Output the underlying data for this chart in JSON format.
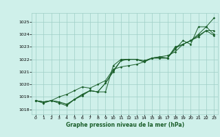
{
  "title": "Graphe pression niveau de la mer (hPa)",
  "bg_color": "#cff0ea",
  "grid_color": "#9ecec6",
  "line_color": "#1a5e2a",
  "x_ticks": [
    0,
    1,
    2,
    3,
    4,
    5,
    6,
    7,
    8,
    9,
    10,
    11,
    12,
    13,
    14,
    15,
    16,
    17,
    18,
    19,
    20,
    21,
    22,
    23
  ],
  "y_ticks": [
    1018,
    1019,
    1020,
    1021,
    1022,
    1023,
    1024,
    1025
  ],
  "ylim": [
    1017.6,
    1025.7
  ],
  "xlim": [
    -0.5,
    23.5
  ],
  "line1": [
    1018.7,
    1018.6,
    1018.7,
    1018.6,
    1018.4,
    1018.8,
    1019.2,
    1019.5,
    1019.4,
    1019.4,
    1021.5,
    1022.0,
    1022.0,
    1022.0,
    1021.8,
    1022.1,
    1022.1,
    1022.1,
    1022.8,
    1023.5,
    1023.2,
    1024.6,
    1024.6,
    1025.3
  ],
  "line2": [
    1018.7,
    1018.6,
    1018.7,
    1018.6,
    1018.4,
    1018.8,
    1019.2,
    1019.5,
    1019.4,
    1020.1,
    1021.0,
    1021.9,
    1022.0,
    1022.0,
    1021.8,
    1022.1,
    1022.1,
    1022.1,
    1023.0,
    1023.2,
    1023.5,
    1024.0,
    1024.6,
    1024.0
  ],
  "line3": [
    1018.7,
    1018.6,
    1018.7,
    1018.5,
    1018.3,
    1018.8,
    1019.1,
    1019.5,
    1019.4,
    1020.1,
    1021.1,
    1021.9,
    1022.0,
    1022.0,
    1021.9,
    1022.1,
    1022.2,
    1022.1,
    1022.9,
    1023.2,
    1023.5,
    1023.8,
    1024.3,
    1023.9
  ],
  "line4": [
    1018.7,
    1018.5,
    1018.7,
    1019.0,
    1019.2,
    1019.5,
    1019.8,
    1019.7,
    1020.0,
    1020.3,
    1021.2,
    1021.4,
    1021.5,
    1021.6,
    1021.8,
    1022.1,
    1022.2,
    1022.3,
    1022.6,
    1023.2,
    1023.5,
    1023.9,
    1024.3,
    1024.3
  ],
  "title_fontsize": 5.5,
  "tick_fontsize": 4.5,
  "linewidth": 0.7,
  "markersize": 1.8
}
